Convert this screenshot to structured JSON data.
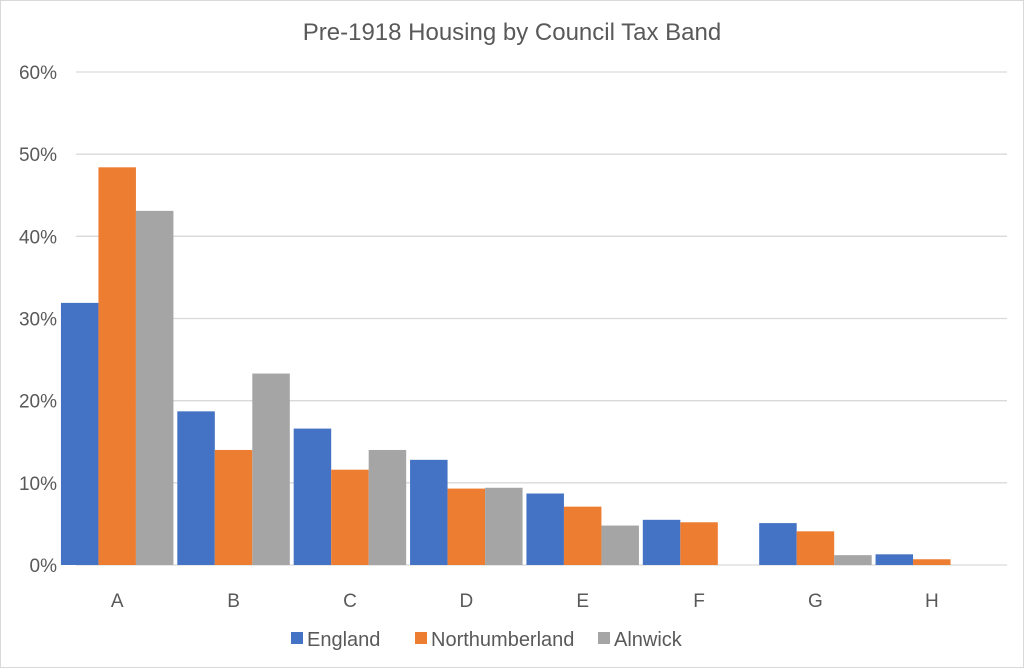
{
  "chart_data": {
    "type": "bar",
    "title": "Pre-1918 Housing by Council Tax Band",
    "xlabel": "",
    "ylabel": "",
    "categories": [
      "A",
      "B",
      "C",
      "D",
      "E",
      "F",
      "G",
      "H"
    ],
    "series": [
      {
        "name": "England",
        "color": "#4472C4",
        "values": [
          31.9,
          18.7,
          16.6,
          12.8,
          8.7,
          5.5,
          5.1,
          1.3
        ]
      },
      {
        "name": "Northumberland",
        "color": "#ED7D31",
        "values": [
          48.4,
          14.0,
          11.6,
          9.3,
          7.1,
          5.2,
          4.1,
          0.7
        ]
      },
      {
        "name": "Alnwick",
        "color": "#A5A5A5",
        "values": [
          43.1,
          23.3,
          14.0,
          9.4,
          4.8,
          0,
          1.2,
          0
        ]
      }
    ],
    "ylim": [
      0,
      60
    ],
    "yticks": [
      "0%",
      "10%",
      "20%",
      "30%",
      "40%",
      "50%",
      "60%"
    ],
    "grid": true,
    "legend_position": "bottom"
  }
}
